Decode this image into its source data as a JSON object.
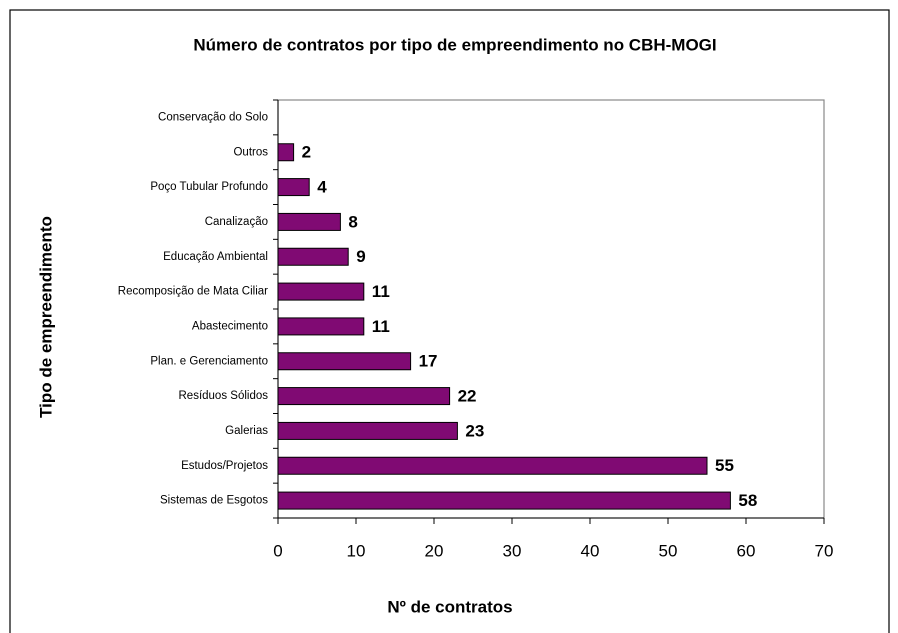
{
  "chart_data": {
    "type": "bar",
    "orientation": "horizontal",
    "title": "Número de contratos por tipo de empreendimento no CBH-MOGI",
    "x_label": "Nº de contratos",
    "y_label": "Tipo de empreendimento",
    "categories": [
      "Conservação do Solo",
      "Outros",
      "Poço Tubular Profundo",
      "Canalização",
      "Educação Ambiental",
      "Recomposição de Mata Ciliar",
      "Abastecimento",
      "Plan. e Gerenciamento",
      "Resíduos Sólidos",
      "Galerias",
      "Estudos/Projetos",
      "Sistemas de Esgotos"
    ],
    "values": [
      null,
      2,
      4,
      8,
      9,
      11,
      11,
      17,
      22,
      23,
      55,
      58
    ],
    "color": "#800a73",
    "xlim": [
      0,
      70
    ],
    "xticks": [
      0,
      10,
      20,
      30,
      40,
      50,
      60,
      70
    ],
    "grid": false
  }
}
